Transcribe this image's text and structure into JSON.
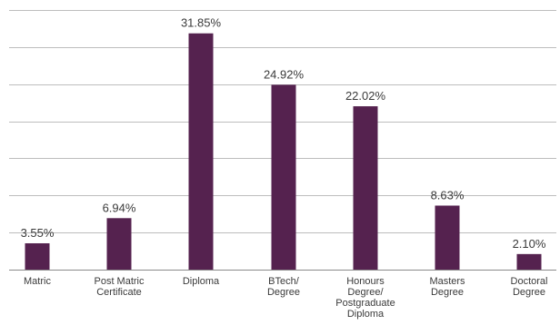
{
  "chart_data": {
    "type": "bar",
    "categories": [
      [
        "Matric"
      ],
      [
        "Post Matric",
        "Certificate"
      ],
      [
        "Diploma"
      ],
      [
        "BTech/",
        "Degree"
      ],
      [
        "Honours",
        "Degree/",
        "Postgraduate",
        "Diploma"
      ],
      [
        "Masters",
        "Degree"
      ],
      [
        "Doctoral",
        "Degree"
      ]
    ],
    "values": [
      3.55,
      6.94,
      31.85,
      24.92,
      22.02,
      8.63,
      2.1
    ],
    "value_labels": [
      "3.55%",
      "6.94%",
      "31.85%",
      "24.92%",
      "22.02%",
      "8.63%",
      "2.10%"
    ],
    "ylim": [
      0,
      35
    ],
    "y_gridlines": [
      5,
      10,
      15,
      20,
      25,
      30,
      35
    ],
    "grid": true,
    "bar_color": "#55224f",
    "title": "",
    "xlabel": "",
    "ylabel": ""
  }
}
